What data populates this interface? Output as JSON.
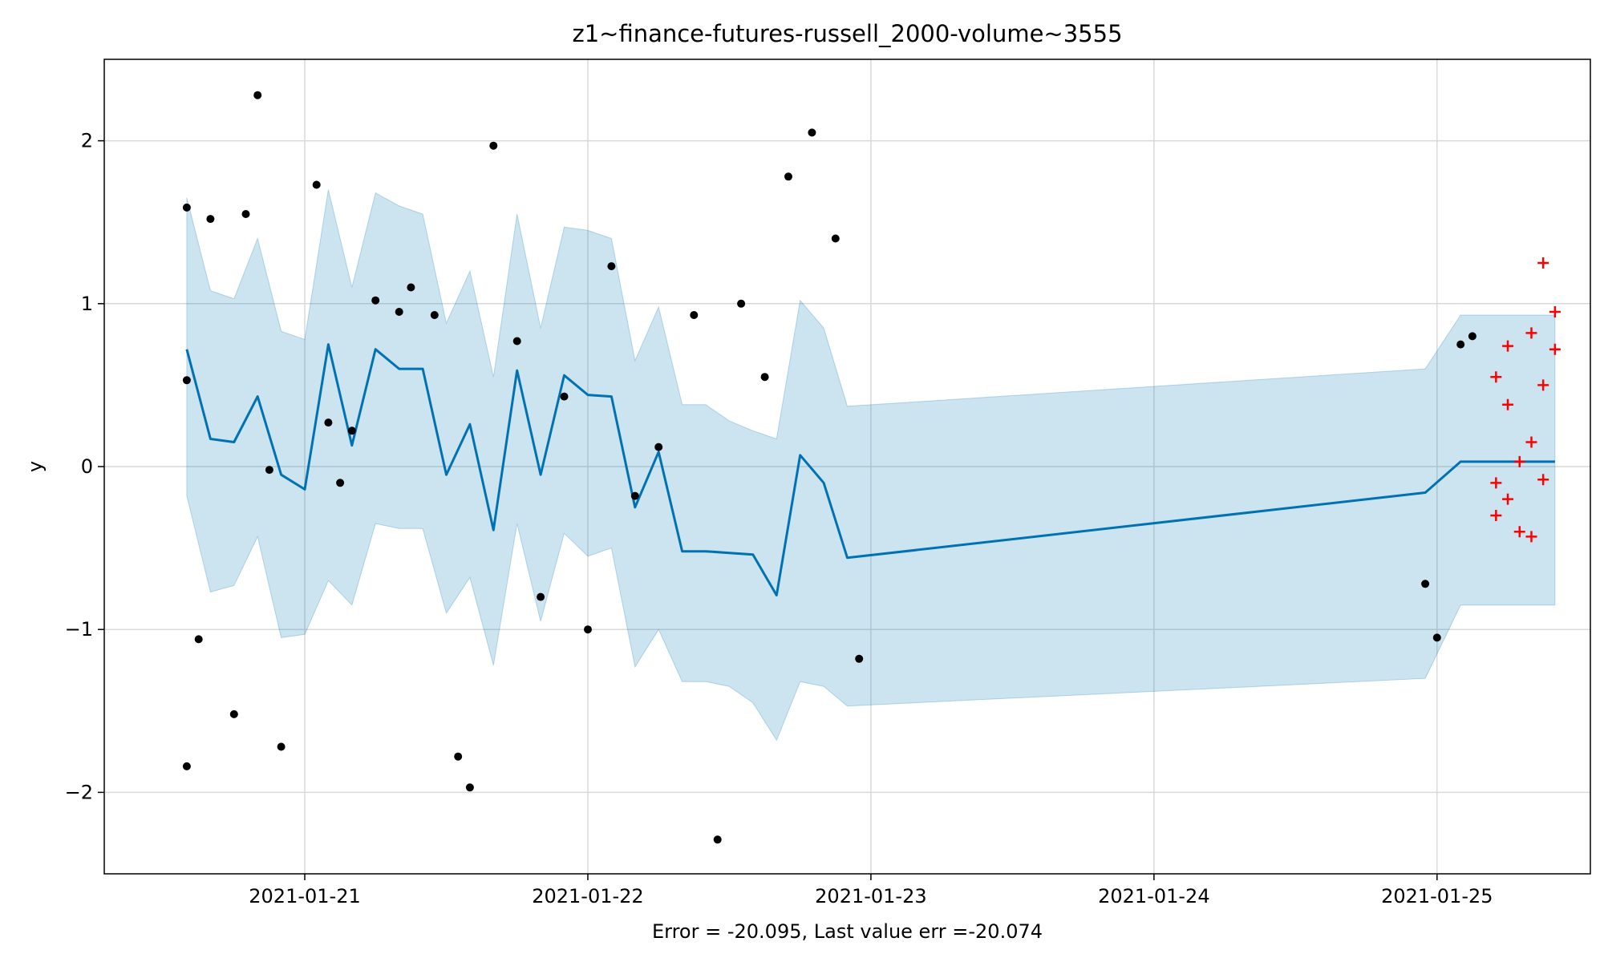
{
  "chart_data": {
    "type": "scatter",
    "title": "z1~finance-futures-russell_2000-volume~3555",
    "xlabel": "Error = -20.095, Last value err =-20.074",
    "ylabel": "y",
    "xlim": [
      "2021-01-20 07:00",
      "2021-01-25 13:00"
    ],
    "ylim": [
      -2.5,
      2.5
    ],
    "x_ticks": [
      "2021-01-21",
      "2021-01-22",
      "2021-01-23",
      "2021-01-24",
      "2021-01-25"
    ],
    "y_ticks": [
      -2,
      -1,
      0,
      1,
      2
    ],
    "y_tick_labels": [
      "−2",
      "−1",
      "0",
      "1",
      "2"
    ],
    "grid": true,
    "colors": {
      "forecast_line": "#0072B2",
      "interval_fill": "#0072B2",
      "observed": "#000000",
      "future": "#ff0000",
      "grid": "#d9d9d9"
    },
    "series": [
      {
        "kind": "forecast",
        "x": [
          "2021-01-20 14:00",
          "2021-01-20 16:00",
          "2021-01-20 18:00",
          "2021-01-20 20:00",
          "2021-01-20 22:00",
          "2021-01-21 00:00",
          "2021-01-21 02:00",
          "2021-01-21 04:00",
          "2021-01-21 06:00",
          "2021-01-21 08:00",
          "2021-01-21 10:00",
          "2021-01-21 12:00",
          "2021-01-21 14:00",
          "2021-01-21 16:00",
          "2021-01-21 18:00",
          "2021-01-21 20:00",
          "2021-01-21 22:00",
          "2021-01-22 00:00",
          "2021-01-22 02:00",
          "2021-01-22 04:00",
          "2021-01-22 06:00",
          "2021-01-22 08:00",
          "2021-01-22 10:00",
          "2021-01-22 12:00",
          "2021-01-22 14:00",
          "2021-01-22 16:00",
          "2021-01-22 18:00",
          "2021-01-22 20:00",
          "2021-01-22 22:00",
          "2021-01-24 23:00",
          "2021-01-25 02:00",
          "2021-01-25 04:00",
          "2021-01-25 06:00",
          "2021-01-25 08:00",
          "2021-01-25 10:00"
        ],
        "y": [
          0.72,
          0.17,
          0.15,
          0.43,
          -0.05,
          -0.14,
          0.75,
          0.13,
          0.72,
          0.6,
          0.6,
          -0.05,
          0.26,
          -0.39,
          0.59,
          -0.05,
          0.56,
          0.44,
          0.43,
          -0.25,
          0.09,
          -0.52,
          -0.52,
          -0.53,
          -0.54,
          -0.79,
          0.07,
          -0.1,
          -0.56,
          -0.16,
          0.03,
          0.03,
          0.03,
          0.03,
          0.03
        ],
        "lower": [
          -0.18,
          -0.77,
          -0.73,
          -0.43,
          -1.05,
          -1.03,
          -0.7,
          -0.85,
          -0.35,
          -0.38,
          -0.38,
          -0.9,
          -0.68,
          -1.22,
          -0.35,
          -0.95,
          -0.41,
          -0.55,
          -0.5,
          -1.23,
          -1.0,
          -1.32,
          -1.32,
          -1.35,
          -1.45,
          -1.68,
          -1.32,
          -1.35,
          -1.47,
          -1.3,
          -0.85,
          -0.85,
          -0.85,
          -0.85,
          -0.85
        ],
        "upper": [
          1.65,
          1.08,
          1.03,
          1.4,
          0.83,
          0.78,
          1.7,
          1.1,
          1.68,
          1.6,
          1.55,
          0.88,
          1.2,
          0.55,
          1.55,
          0.85,
          1.47,
          1.45,
          1.4,
          0.65,
          0.98,
          0.38,
          0.38,
          0.28,
          0.22,
          0.17,
          1.02,
          0.85,
          0.37,
          0.6,
          0.93,
          0.93,
          0.93,
          0.93,
          0.93
        ]
      },
      {
        "kind": "observed",
        "x": [
          "2021-01-20 14:00",
          "2021-01-20 14:00",
          "2021-01-20 14:00",
          "2021-01-20 15:00",
          "2021-01-20 16:00",
          "2021-01-20 18:00",
          "2021-01-20 19:00",
          "2021-01-20 20:00",
          "2021-01-20 21:00",
          "2021-01-20 22:00",
          "2021-01-21 01:00",
          "2021-01-21 02:00",
          "2021-01-21 03:00",
          "2021-01-21 04:00",
          "2021-01-21 06:00",
          "2021-01-21 08:00",
          "2021-01-21 09:00",
          "2021-01-21 11:00",
          "2021-01-21 13:00",
          "2021-01-21 14:00",
          "2021-01-21 16:00",
          "2021-01-21 18:00",
          "2021-01-21 20:00",
          "2021-01-21 22:00",
          "2021-01-22 00:00",
          "2021-01-22 02:00",
          "2021-01-22 04:00",
          "2021-01-22 06:00",
          "2021-01-22 09:00",
          "2021-01-22 11:00",
          "2021-01-22 13:00",
          "2021-01-22 15:00",
          "2021-01-22 17:00",
          "2021-01-22 19:00",
          "2021-01-22 21:00",
          "2021-01-22 23:00",
          "2021-01-24 23:00",
          "2021-01-25 00:00",
          "2021-01-25 02:00",
          "2021-01-25 03:00"
        ],
        "y": [
          1.59,
          0.53,
          -1.84,
          -1.06,
          1.52,
          -1.52,
          1.55,
          2.28,
          -0.02,
          -1.72,
          1.73,
          0.27,
          -0.1,
          0.22,
          1.02,
          0.95,
          1.1,
          0.93,
          -1.78,
          -1.97,
          1.97,
          0.77,
          -0.8,
          0.43,
          -1.0,
          1.23,
          -0.18,
          0.12,
          0.93,
          -2.29,
          1.0,
          0.55,
          1.78,
          2.05,
          1.4,
          -1.18,
          -0.72,
          -1.05,
          0.75,
          0.8
        ]
      },
      {
        "kind": "future",
        "x": [
          "2021-01-25 05:00",
          "2021-01-25 05:00",
          "2021-01-25 05:00",
          "2021-01-25 06:00",
          "2021-01-25 06:00",
          "2021-01-25 06:00",
          "2021-01-25 07:00",
          "2021-01-25 07:00",
          "2021-01-25 08:00",
          "2021-01-25 08:00",
          "2021-01-25 08:00",
          "2021-01-25 09:00",
          "2021-01-25 09:00",
          "2021-01-25 09:00",
          "2021-01-25 10:00",
          "2021-01-25 10:00"
        ],
        "y": [
          -0.1,
          0.55,
          -0.3,
          0.74,
          0.38,
          -0.2,
          0.03,
          -0.4,
          0.82,
          -0.43,
          0.15,
          0.5,
          -0.08,
          1.25,
          0.95,
          0.72
        ]
      }
    ]
  }
}
